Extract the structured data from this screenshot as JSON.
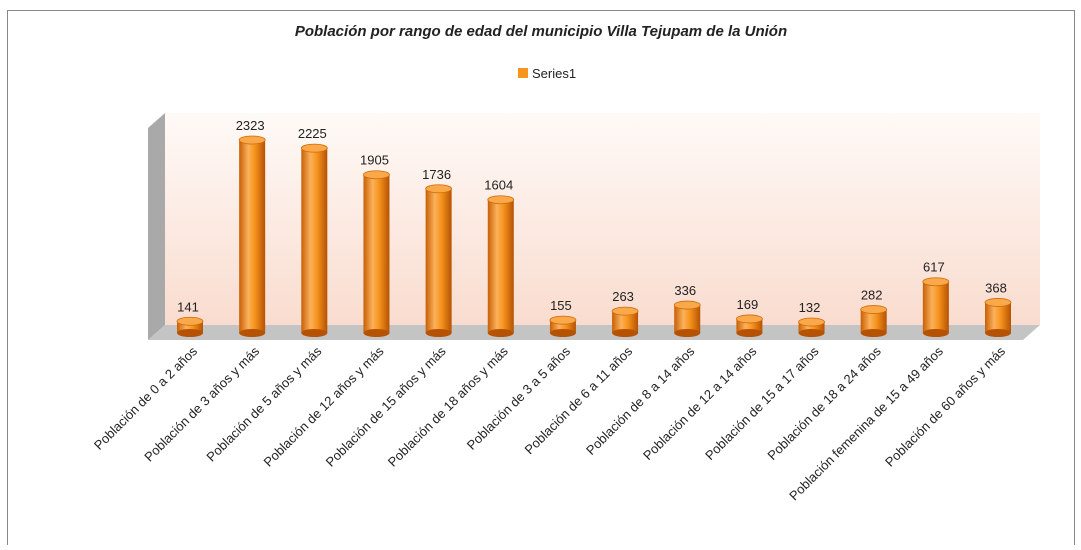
{
  "chart_data": {
    "type": "bar",
    "title": "Población por rango de edad del municipio Villa Tejupam de la Unión",
    "categories": [
      "Población de 0 a 2 años",
      "Población de 3 años y más",
      "Población de 5 años y más",
      "Población de 12 años y más",
      "Población de 15 años y más",
      "Población de 18 años y más",
      "Población de 3 a 5 años",
      "Población de 6 a 11 años",
      "Población de 8 a 14 años",
      "Población de 12 a 14 años",
      "Población de 15 a 17 años",
      "Población de 18 a 24 años",
      "Población femenina de 15 a 49 años",
      "Población de 60 años y más"
    ],
    "series": [
      {
        "name": "Series1",
        "color": "#f7941d",
        "values": [
          141,
          2323,
          2225,
          1905,
          1736,
          1604,
          155,
          263,
          336,
          169,
          132,
          282,
          617,
          368
        ]
      }
    ],
    "legend": "top"
  }
}
